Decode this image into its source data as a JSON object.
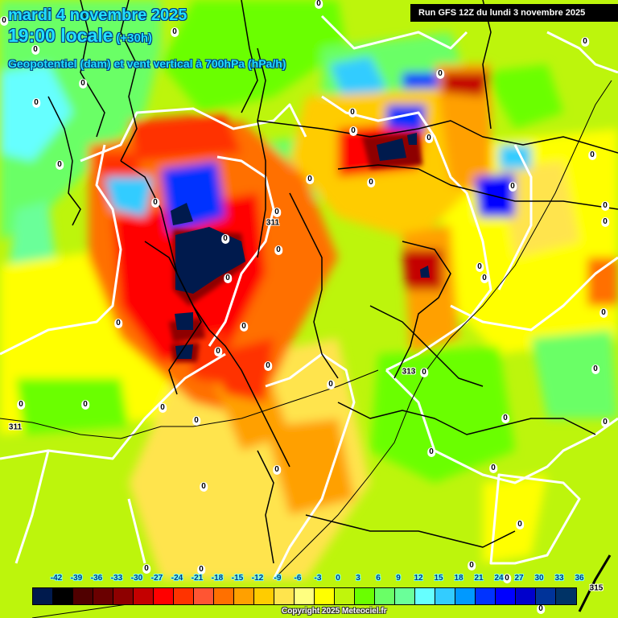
{
  "header": {
    "date": "mardi 4 novembre 2025",
    "time": "19:00 locale",
    "lead": "(+30h)",
    "field": "Geopotentiel (dam) et vent vertical à 700hPa (hPa/h)",
    "run": "Run GFS 12Z du lundi 3 novembre 2025"
  },
  "footer": {
    "copyright": "Copyright 2025 Meteociel.fr"
  },
  "legend": {
    "ticks": [
      "-42",
      "-39",
      "-36",
      "-33",
      "-30",
      "-27",
      "-24",
      "-21",
      "-18",
      "-15",
      "-12",
      "-9",
      "-6",
      "-3",
      "0",
      "3",
      "6",
      "9",
      "12",
      "15",
      "18",
      "21",
      "24",
      "27",
      "30",
      "33",
      "36"
    ],
    "colors": [
      "#001a4d",
      "#000000",
      "#500000",
      "#6a0000",
      "#8e0000",
      "#c40000",
      "#ff0000",
      "#ff3300",
      "#ff5533",
      "#ff7000",
      "#ffa000",
      "#ffcc00",
      "#ffe44d",
      "#ffff80",
      "#ffff00",
      "#c0f50c",
      "#6aff00",
      "#6aff66",
      "#6aff99",
      "#66ffff",
      "#33ccff",
      "#0099ff",
      "#0033ff",
      "#0000ff",
      "#0000cc",
      "#003399",
      "#003366"
    ]
  },
  "map": {
    "region": "Balkans / Greece / Turkey",
    "zero_contour_label": "0",
    "geopotential_labels": [
      "311",
      "311",
      "313",
      "315"
    ],
    "zero_labels_count": 58
  }
}
